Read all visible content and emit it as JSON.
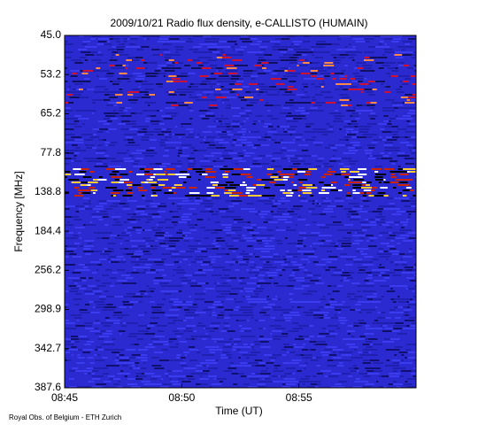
{
  "chart_data": {
    "type": "spectrogram",
    "title": "2009/10/21  Radio flux density, e-CALLISTO (HUMAIN)",
    "x_label": "Time (UT)",
    "y_label": "Frequency [MHz]",
    "footer": "Royal Obs. of Belgium - ETH Zurich",
    "xlim": [
      "08:45",
      "09:00"
    ],
    "xticks": [
      "08:45",
      "08:50",
      "08:55"
    ],
    "ylim": [
      45.0,
      387.6
    ],
    "yticks": [
      {
        "value": 45.0,
        "label": "45.0"
      },
      {
        "value": 53.2,
        "label": "53.2"
      },
      {
        "value": 65.2,
        "label": "65.2"
      },
      {
        "value": 77.8,
        "label": "77.8"
      },
      {
        "value": 138.8,
        "label": "138.8"
      },
      {
        "value": 184.4,
        "label": "184.4"
      },
      {
        "value": 256.2,
        "label": "256.2"
      },
      {
        "value": 298.9,
        "label": "298.9"
      },
      {
        "value": 342.7,
        "label": "342.7"
      },
      {
        "value": 387.6,
        "label": "387.6"
      }
    ]
  }
}
